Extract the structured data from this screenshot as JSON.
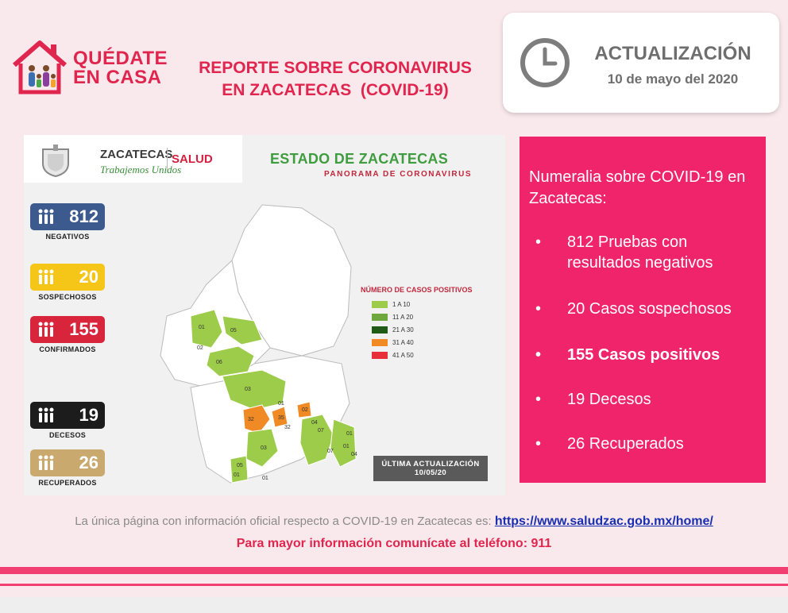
{
  "header": {
    "quedate_line1": "QUÉDATE",
    "quedate_line2": "EN CASA",
    "report_line1": "REPORTE SOBRE CORONAVIRUS",
    "report_line2": "EN ZACATECAS  (COVID-19)",
    "update_label": "ACTUALIZACIÓN",
    "update_date": "10 de mayo del 2020",
    "accent": "#e0254f"
  },
  "panel": {
    "brand": "ZACATECAS",
    "brand_tagline": "Trabajemos Unidos",
    "salud": "SALUD",
    "title": "ESTADO DE ZACATECAS",
    "subtitle": "PANORAMA DE CORONAVIRUS",
    "stats": [
      {
        "value": "812",
        "label": "NEGATIVOS",
        "color": "#3d5a8f"
      },
      {
        "value": "20",
        "label": "SOSPECHOSOS",
        "color": "#f5c518"
      },
      {
        "value": "155",
        "label": "CONFIRMADOS",
        "color": "#d8253c"
      },
      {
        "value": "19",
        "label": "DECESOS",
        "color": "#1c1c1c"
      },
      {
        "value": "26",
        "label": "RECUPERADOS",
        "color": "#c9a96e"
      }
    ],
    "legend_title": "NÚMERO DE CASOS POSITIVOS",
    "legend": [
      {
        "label": "1 A 10",
        "color": "#9ccc4a"
      },
      {
        "label": "11 A 20",
        "color": "#6ea83c"
      },
      {
        "label": "21 A 30",
        "color": "#1f5a16"
      },
      {
        "label": "31 A 40",
        "color": "#f08a24"
      },
      {
        "label": "41 A 50",
        "color": "#e8303a"
      }
    ],
    "map_labels": [
      "01",
      "02",
      "05",
      "06",
      "01",
      "03",
      "32",
      "35",
      "32",
      "02",
      "04",
      "01",
      "07",
      "03",
      "07",
      "01",
      "04",
      "05",
      "01",
      "01"
    ],
    "ultima_line1": "ÚLTIMA ACTUALIZACIÓN",
    "ultima_line2": "10/05/20"
  },
  "info": {
    "title": "Numeralia sobre COVID-19 en Zacatecas:",
    "bullet": "•",
    "items": [
      "812 Pruebas con resultados negativos",
      "20 Casos sospechosos",
      "155 Casos positivos",
      "19 Decesos",
      "26 Recuperados"
    ],
    "bg": "#f0246a"
  },
  "footer": {
    "text": "La única página con información oficial respecto a COVID-19 en Zacatecas es:",
    "link": "https://www.saludzac.gob.mx/home/",
    "phone": "Para mayor información comunícate al teléfono: 911"
  }
}
